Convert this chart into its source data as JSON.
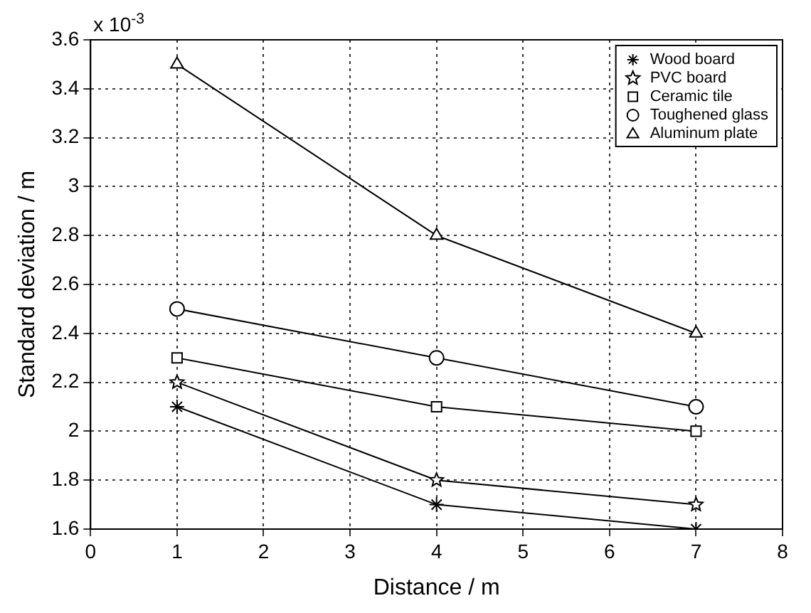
{
  "chart_data": {
    "type": "line",
    "xlabel": "Distance / m",
    "ylabel": "Standard deviation / m",
    "annotations": [
      "x 10$^{-3}$"
    ],
    "x": [
      1,
      4,
      7
    ],
    "xlim": [
      0,
      8
    ],
    "xticks": [
      0,
      1,
      2,
      3,
      4,
      5,
      6,
      7,
      8
    ],
    "ylim": [
      1.6,
      3.6
    ],
    "yticks": [
      1.6,
      1.8,
      2,
      2.2,
      2.4,
      2.6,
      2.8,
      3,
      3.2,
      3.4,
      3.6
    ],
    "grid": true,
    "legend": "top right",
    "line_style": "solid",
    "series": [
      {
        "name": "Wood board",
        "color": "#000000",
        "marker": "cross",
        "values": [
          2.1,
          1.7,
          1.6
        ]
      },
      {
        "name": "PVC board",
        "color": "#000000",
        "marker": "star",
        "values": [
          2.2,
          1.8,
          1.7
        ]
      },
      {
        "name": "Ceramic tile",
        "color": "#000000",
        "marker": "square",
        "values": [
          2.3,
          2.1,
          2.0
        ]
      },
      {
        "name": "Toughened glass",
        "color": "#000000",
        "marker": "circle",
        "values": [
          2.5,
          2.3,
          2.1
        ]
      },
      {
        "name": "Aluminum plate",
        "color": "#000000",
        "marker": "triangle",
        "values": [
          3.5,
          2.8,
          2.4
        ]
      }
    ]
  }
}
